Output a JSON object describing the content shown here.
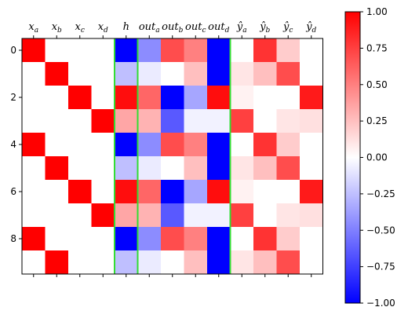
{
  "chart_data": {
    "type": "heatmap",
    "colormap": "bwr",
    "column_labels": [
      "x_a",
      "x_b",
      "x_c",
      "x_d",
      "h",
      "out_a",
      "out_b",
      "out_c",
      "out_d",
      "ŷ_a",
      "ŷ_b",
      "ŷ_c",
      "ŷ_d"
    ],
    "column_labels_display": [
      {
        "base": "x",
        "sub": "a"
      },
      {
        "base": "x",
        "sub": "b"
      },
      {
        "base": "x",
        "sub": "c"
      },
      {
        "base": "x",
        "sub": "d"
      },
      {
        "base": "h",
        "sub": ""
      },
      {
        "base": "out",
        "sub": "a"
      },
      {
        "base": "out",
        "sub": "b"
      },
      {
        "base": "out",
        "sub": "c"
      },
      {
        "base": "out",
        "sub": "d"
      },
      {
        "base": "ŷ",
        "sub": "a"
      },
      {
        "base": "ŷ",
        "sub": "b"
      },
      {
        "base": "ŷ",
        "sub": "c"
      },
      {
        "base": "ŷ",
        "sub": "d"
      }
    ],
    "y_ticks": [
      0,
      2,
      4,
      6,
      8
    ],
    "y_tick_labels": [
      "0",
      "2",
      "4",
      "6",
      "8"
    ],
    "rows": 10,
    "matrix": [
      [
        1,
        0,
        0,
        0,
        -1.0,
        -0.45,
        0.7,
        0.5,
        -1.0,
        0.0,
        0.8,
        0.2,
        0.0
      ],
      [
        0,
        1,
        0,
        0,
        -0.25,
        -0.08,
        0.0,
        0.25,
        -1.0,
        0.1,
        0.25,
        0.7,
        0.0
      ],
      [
        0,
        0,
        1,
        0,
        0.95,
        0.6,
        -1.0,
        -0.35,
        0.95,
        0.05,
        0.0,
        0.0,
        0.9
      ],
      [
        0,
        0,
        0,
        1,
        0.35,
        0.3,
        -0.65,
        -0.05,
        -0.05,
        0.75,
        0.0,
        0.1,
        0.12
      ],
      [
        1,
        0,
        0,
        0,
        -1.0,
        -0.45,
        0.7,
        0.5,
        -1.0,
        0.0,
        0.8,
        0.2,
        0.0
      ],
      [
        0,
        1,
        0,
        0,
        -0.25,
        -0.08,
        0.0,
        0.25,
        -1.0,
        0.1,
        0.25,
        0.7,
        0.0
      ],
      [
        0,
        0,
        1,
        0,
        0.95,
        0.6,
        -1.0,
        -0.35,
        0.95,
        0.05,
        0.0,
        0.0,
        0.9
      ],
      [
        0,
        0,
        0,
        1,
        0.35,
        0.3,
        -0.65,
        -0.05,
        -0.05,
        0.75,
        0.0,
        0.1,
        0.12
      ],
      [
        1,
        0,
        0,
        0,
        -1.0,
        -0.45,
        0.7,
        0.5,
        -1.0,
        0.0,
        0.8,
        0.2,
        0.0
      ],
      [
        0,
        1,
        0,
        0,
        -0.25,
        -0.08,
        0.0,
        0.25,
        -1.0,
        0.1,
        0.25,
        0.7,
        0.0
      ]
    ],
    "value_range": [
      -1.0,
      1.0
    ],
    "colorbar": {
      "ticks": [
        1.0,
        0.75,
        0.5,
        0.25,
        0.0,
        -0.25,
        -0.5,
        -0.75,
        -1.0
      ],
      "tick_labels": [
        "1.00",
        "0.75",
        "0.50",
        "0.25",
        "0.00",
        "−0.25",
        "−0.50",
        "−0.75",
        "−1.00"
      ]
    },
    "separator_lines_after_columns": [
      4,
      5,
      9
    ],
    "separator_color": "#33dd33",
    "grid": false,
    "legend": "colorbar-right"
  }
}
